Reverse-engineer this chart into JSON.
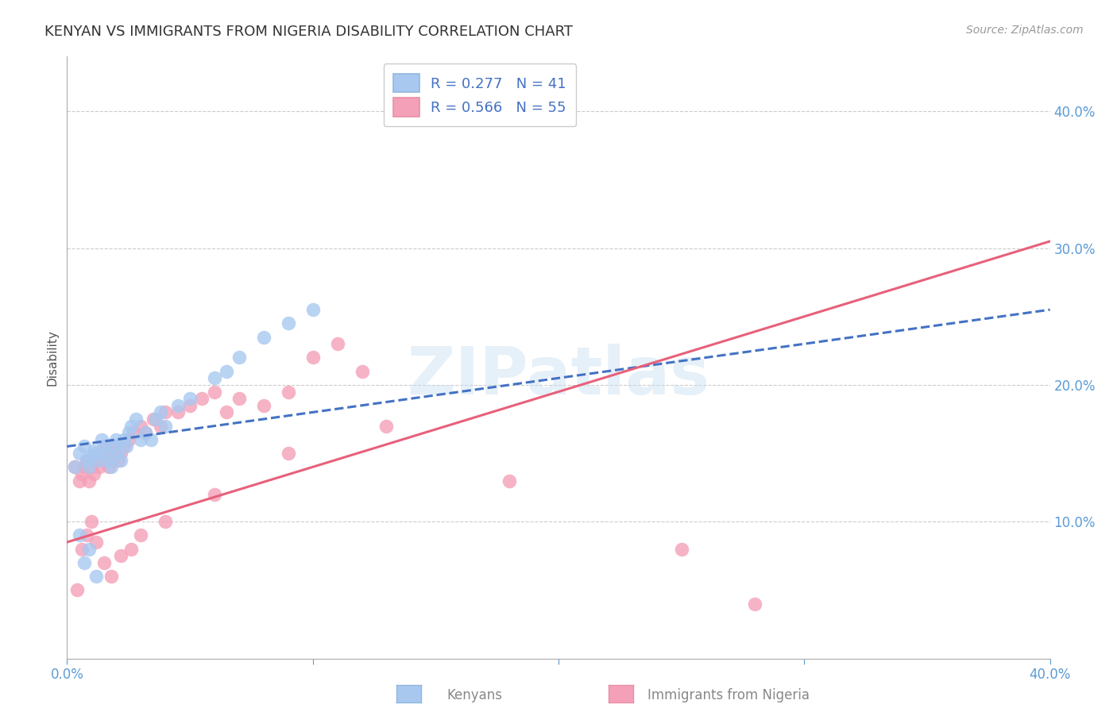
{
  "title": "KENYAN VS IMMIGRANTS FROM NIGERIA DISABILITY CORRELATION CHART",
  "source": "Source: ZipAtlas.com",
  "xlabel_kenyans": "Kenyans",
  "xlabel_nigeria": "Immigrants from Nigeria",
  "ylabel": "Disability",
  "watermark": "ZIPatlas",
  "xmin": 0.0,
  "xmax": 0.4,
  "ymin": 0.0,
  "ymax": 0.44,
  "ytick_vals": [
    0.1,
    0.2,
    0.3,
    0.4
  ],
  "ytick_labels": [
    "10.0%",
    "20.0%",
    "30.0%",
    "40.0%"
  ],
  "xtick_vals": [
    0.0,
    0.4
  ],
  "xtick_labels": [
    "0.0%",
    "40.0%"
  ],
  "legend_r_kenyan": "R = 0.277",
  "legend_n_kenyan": "N = 41",
  "legend_r_nigeria": "R = 0.566",
  "legend_n_nigeria": "N = 55",
  "kenyan_color": "#a8c8f0",
  "nigeria_color": "#f4a0b8",
  "line_kenyan_color": "#4472c4",
  "line_nigeria_color": "#e8607a",
  "title_color": "#333333",
  "axis_label_color": "#5b9bd5",
  "background_color": "#ffffff",
  "grid_color": "#cccccc",
  "kenyan_x": [
    0.003,
    0.005,
    0.007,
    0.008,
    0.009,
    0.01,
    0.011,
    0.012,
    0.013,
    0.014,
    0.015,
    0.016,
    0.017,
    0.018,
    0.019,
    0.02,
    0.021,
    0.022,
    0.023,
    0.024,
    0.025,
    0.026,
    0.028,
    0.03,
    0.032,
    0.034,
    0.036,
    0.038,
    0.04,
    0.045,
    0.05,
    0.06,
    0.065,
    0.07,
    0.08,
    0.09,
    0.1,
    0.005,
    0.007,
    0.009,
    0.012
  ],
  "kenyan_y": [
    0.14,
    0.15,
    0.155,
    0.145,
    0.14,
    0.148,
    0.152,
    0.15,
    0.145,
    0.16,
    0.155,
    0.15,
    0.145,
    0.14,
    0.155,
    0.16,
    0.15,
    0.145,
    0.16,
    0.155,
    0.165,
    0.17,
    0.175,
    0.16,
    0.165,
    0.16,
    0.175,
    0.18,
    0.17,
    0.185,
    0.19,
    0.205,
    0.21,
    0.22,
    0.235,
    0.245,
    0.255,
    0.09,
    0.07,
    0.08,
    0.06
  ],
  "nigeria_x": [
    0.003,
    0.005,
    0.006,
    0.007,
    0.008,
    0.009,
    0.01,
    0.011,
    0.012,
    0.013,
    0.014,
    0.015,
    0.016,
    0.017,
    0.018,
    0.019,
    0.02,
    0.021,
    0.022,
    0.023,
    0.025,
    0.027,
    0.03,
    0.032,
    0.035,
    0.038,
    0.04,
    0.045,
    0.05,
    0.055,
    0.06,
    0.065,
    0.07,
    0.08,
    0.09,
    0.1,
    0.11,
    0.12,
    0.004,
    0.006,
    0.008,
    0.01,
    0.012,
    0.015,
    0.018,
    0.022,
    0.026,
    0.03,
    0.04,
    0.06,
    0.09,
    0.13,
    0.18,
    0.25,
    0.28
  ],
  "nigeria_y": [
    0.14,
    0.13,
    0.135,
    0.14,
    0.145,
    0.13,
    0.14,
    0.135,
    0.145,
    0.14,
    0.15,
    0.145,
    0.155,
    0.14,
    0.145,
    0.15,
    0.155,
    0.145,
    0.15,
    0.155,
    0.16,
    0.165,
    0.17,
    0.165,
    0.175,
    0.17,
    0.18,
    0.18,
    0.185,
    0.19,
    0.195,
    0.18,
    0.19,
    0.185,
    0.195,
    0.22,
    0.23,
    0.21,
    0.05,
    0.08,
    0.09,
    0.1,
    0.085,
    0.07,
    0.06,
    0.075,
    0.08,
    0.09,
    0.1,
    0.12,
    0.15,
    0.17,
    0.13,
    0.08,
    0.04
  ],
  "line_kenyan_start_y": 0.155,
  "line_kenyan_end_y": 0.255,
  "line_nigeria_start_y": 0.085,
  "line_nigeria_end_y": 0.305
}
